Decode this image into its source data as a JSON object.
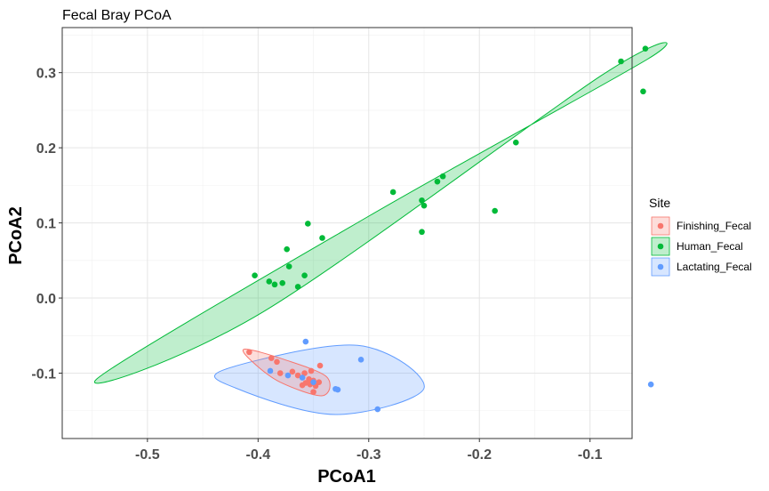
{
  "chart_data": {
    "type": "scatter",
    "title": "Fecal Bray PCoA",
    "xlabel": "PCoA1",
    "ylabel": "PCoA2",
    "xlim": [
      -0.577,
      -0.062
    ],
    "ylim": [
      -0.187,
      0.36
    ],
    "xticks": [
      -0.5,
      -0.4,
      -0.3,
      -0.2,
      -0.1
    ],
    "xtick_labels": [
      "-0.5",
      "-0.4",
      "-0.3",
      "-0.2",
      "-0.1"
    ],
    "yticks": [
      -0.1,
      0.0,
      0.1,
      0.2,
      0.3
    ],
    "ytick_labels": [
      "-0.1",
      "0.0",
      "0.1",
      "0.2",
      "0.3"
    ],
    "grid": true,
    "legend_title": "Site",
    "legend_position": "right",
    "series": [
      {
        "name": "Finishing_Fecal",
        "color": "#F8766D",
        "points": [
          [
            -0.408,
            -0.072
          ],
          [
            -0.388,
            -0.08
          ],
          [
            -0.383,
            -0.085
          ],
          [
            -0.38,
            -0.1
          ],
          [
            -0.369,
            -0.098
          ],
          [
            -0.364,
            -0.103
          ],
          [
            -0.358,
            -0.1
          ],
          [
            -0.354,
            -0.108
          ],
          [
            -0.352,
            -0.097
          ],
          [
            -0.357,
            -0.113
          ],
          [
            -0.353,
            -0.115
          ],
          [
            -0.35,
            -0.11
          ],
          [
            -0.348,
            -0.117
          ],
          [
            -0.35,
            -0.125
          ],
          [
            -0.345,
            -0.112
          ],
          [
            -0.344,
            -0.09
          ],
          [
            -0.36,
            -0.116
          ]
        ],
        "ellipse": {
          "points": [
            [
              -0.412,
              -0.068
            ],
            [
              -0.376,
              -0.082
            ],
            [
              -0.338,
              -0.105
            ],
            [
              -0.342,
              -0.13
            ],
            [
              -0.38,
              -0.112
            ],
            [
              -0.405,
              -0.085
            ]
          ]
        }
      },
      {
        "name": "Human_Fecal",
        "color": "#00BA38",
        "points": [
          [
            -0.05,
            0.332
          ],
          [
            -0.072,
            0.315
          ],
          [
            -0.052,
            0.275
          ],
          [
            -0.167,
            0.207
          ],
          [
            -0.233,
            0.162
          ],
          [
            -0.238,
            0.155
          ],
          [
            -0.278,
            0.141
          ],
          [
            -0.252,
            0.13
          ],
          [
            -0.25,
            0.123
          ],
          [
            -0.186,
            0.116
          ],
          [
            -0.252,
            0.088
          ],
          [
            -0.355,
            0.099
          ],
          [
            -0.342,
            0.08
          ],
          [
            -0.374,
            0.065
          ],
          [
            -0.372,
            0.042
          ],
          [
            -0.358,
            0.03
          ],
          [
            -0.364,
            0.015
          ],
          [
            -0.378,
            0.02
          ],
          [
            -0.385,
            0.018
          ],
          [
            -0.39,
            0.022
          ],
          [
            -0.403,
            0.03
          ]
        ],
        "ellipse": {
          "points": [
            [
              -0.546,
              -0.108
            ],
            [
              -0.3,
              0.109
            ],
            [
              -0.048,
              0.318
            ],
            [
              -0.09,
              0.296
            ],
            [
              -0.395,
              -0.018
            ]
          ]
        }
      },
      {
        "name": "Lactating_Fecal",
        "color": "#619CFF",
        "points": [
          [
            -0.357,
            -0.058
          ],
          [
            -0.307,
            -0.082
          ],
          [
            -0.389,
            -0.097
          ],
          [
            -0.373,
            -0.103
          ],
          [
            -0.35,
            -0.112
          ],
          [
            -0.33,
            -0.121
          ],
          [
            -0.328,
            -0.122
          ],
          [
            -0.292,
            -0.148
          ],
          [
            -0.045,
            -0.115
          ],
          [
            -0.36,
            -0.106
          ]
        ],
        "ellipse": {
          "points": [
            [
              -0.43,
              -0.095
            ],
            [
              -0.31,
              -0.063
            ],
            [
              -0.25,
              -0.12
            ],
            [
              -0.33,
              -0.155
            ],
            [
              -0.42,
              -0.12
            ]
          ]
        }
      }
    ]
  }
}
